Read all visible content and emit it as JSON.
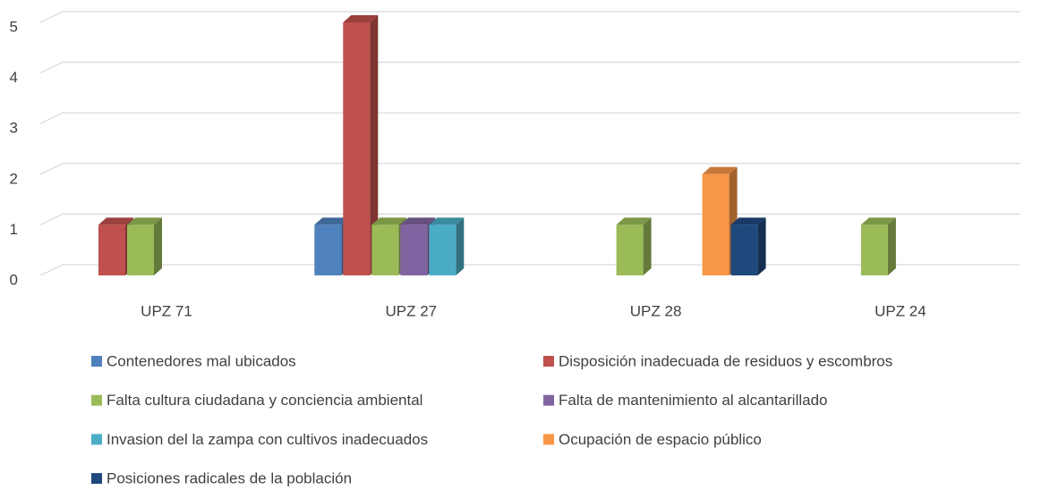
{
  "chart_data": {
    "type": "bar3d",
    "categories": [
      "UPZ 71",
      "UPZ 27",
      "UPZ 28",
      "UPZ 24"
    ],
    "series": [
      {
        "name": "Contenedores mal ubicados",
        "color": "#4f81bd",
        "values": [
          null,
          1,
          null,
          null
        ]
      },
      {
        "name": "Disposición inadecuada de residuos y escombros",
        "color": "#c0504d",
        "values": [
          1,
          5,
          null,
          null
        ]
      },
      {
        "name": "Falta cultura ciudadana y conciencia ambiental",
        "color": "#9bbb59",
        "values": [
          1,
          1,
          1,
          1
        ]
      },
      {
        "name": "Falta de mantenimiento al alcantarillado",
        "color": "#8064a2",
        "values": [
          null,
          1,
          null,
          null
        ]
      },
      {
        "name": "Invasion del la zampa con cultivos inadecuados",
        "color": "#4bacc6",
        "values": [
          null,
          1,
          null,
          null
        ]
      },
      {
        "name": "Ocupación de espacio público",
        "color": "#f79646",
        "values": [
          null,
          null,
          2,
          null
        ]
      },
      {
        "name": "Posiciones radicales de la población",
        "color": "#1f497d",
        "values": [
          null,
          null,
          1,
          null
        ]
      }
    ],
    "ylim": [
      0,
      5
    ],
    "yticks": [
      0,
      1,
      2,
      3,
      4,
      5
    ],
    "grid": true,
    "legend": "bottom"
  }
}
